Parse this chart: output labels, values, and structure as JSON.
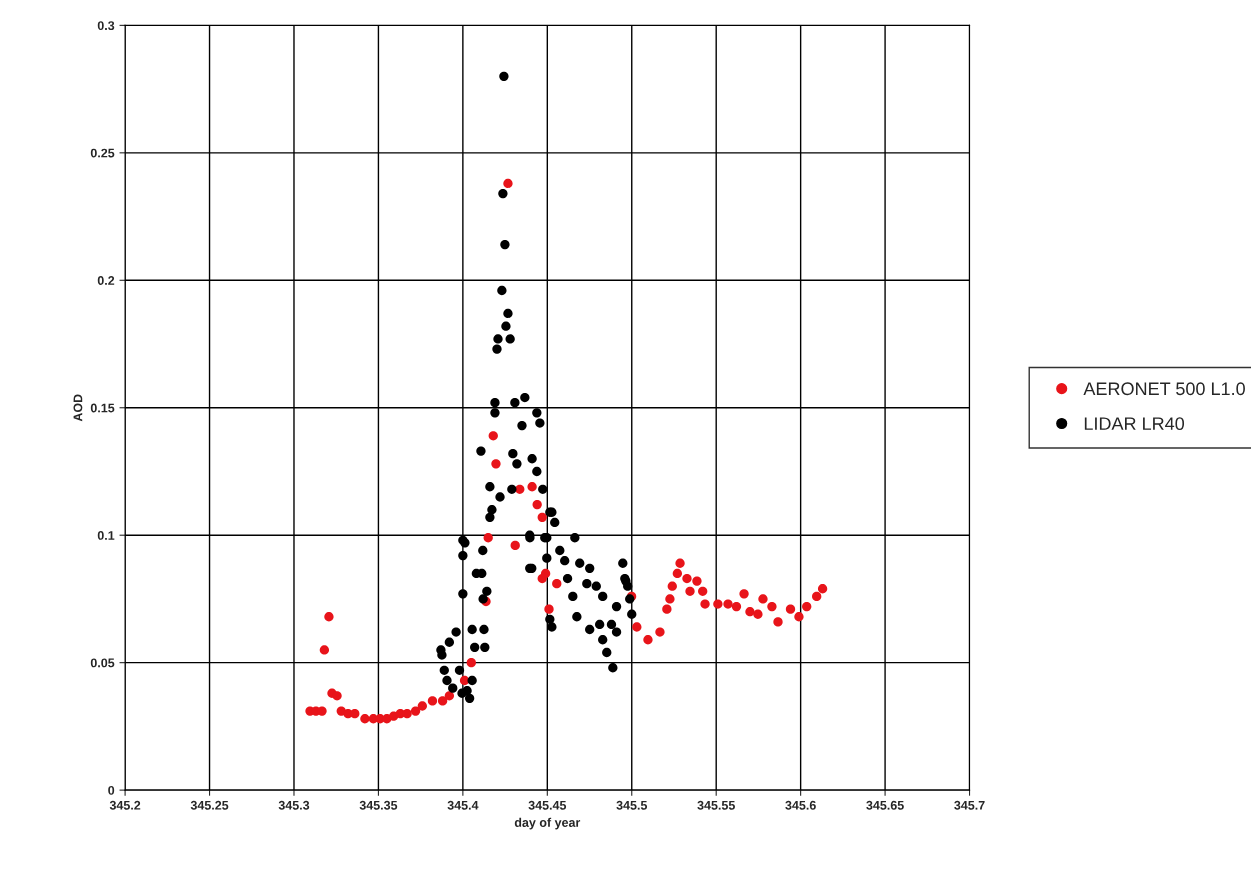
{
  "chart_data": {
    "type": "scatter",
    "xlabel": "day of year",
    "ylabel": "AOD",
    "xlim": [
      345.2,
      345.7
    ],
    "xticks": [
      345.2,
      345.25,
      345.3,
      345.35,
      345.4,
      345.45,
      345.5,
      345.55,
      345.6,
      345.65,
      345.7
    ],
    "ylim": [
      0,
      0.3
    ],
    "yticks": [
      0,
      0.05,
      0.1,
      0.15,
      0.2,
      0.25,
      0.3
    ],
    "grid": true,
    "legend": "right",
    "marker": "circle",
    "series": [
      {
        "name": "AERONET 500 L1.0",
        "color": "#e8141a",
        "x": [
          345.3095,
          345.313,
          345.3166,
          345.318,
          345.3207,
          345.3225,
          345.3255,
          345.328,
          345.332,
          345.336,
          345.342,
          345.347,
          345.351,
          345.355,
          345.359,
          345.363,
          345.367,
          345.372,
          345.376,
          345.382,
          345.388,
          345.392,
          345.401,
          345.405,
          345.4137,
          345.415,
          345.418,
          345.4196,
          345.4267,
          345.431,
          345.4337,
          345.441,
          345.444,
          345.447,
          345.447,
          345.449,
          345.4556,
          345.451,
          345.4999,
          345.503,
          345.5096,
          345.5167,
          345.5208,
          345.5226,
          345.524,
          345.527,
          345.5286,
          345.5327,
          345.5386,
          345.5345,
          345.542,
          345.5434,
          345.551,
          345.557,
          345.562,
          345.5665,
          345.57,
          345.5747,
          345.5777,
          345.583,
          345.5866,
          345.594,
          345.599,
          345.6036,
          345.6095,
          345.613
        ],
        "values": [
          0.031,
          0.031,
          0.031,
          0.055,
          0.068,
          0.038,
          0.037,
          0.031,
          0.03,
          0.03,
          0.028,
          0.028,
          0.028,
          0.028,
          0.029,
          0.03,
          0.03,
          0.031,
          0.033,
          0.035,
          0.035,
          0.037,
          0.043,
          0.05,
          0.074,
          0.099,
          0.139,
          0.128,
          0.238,
          0.096,
          0.118,
          0.119,
          0.112,
          0.107,
          0.083,
          0.085,
          0.081,
          0.071,
          0.076,
          0.064,
          0.059,
          0.062,
          0.071,
          0.075,
          0.08,
          0.085,
          0.089,
          0.083,
          0.082,
          0.078,
          0.078,
          0.073,
          0.073,
          0.073,
          0.072,
          0.077,
          0.07,
          0.069,
          0.075,
          0.072,
          0.066,
          0.071,
          0.068,
          0.072,
          0.076,
          0.079
        ]
      },
      {
        "name": "LIDAR LR40",
        "color": "#000000",
        "x": [
          345.396,
          345.392,
          345.387,
          345.3876,
          345.389,
          345.3906,
          345.394,
          345.3995,
          345.404,
          345.4055,
          345.407,
          345.398,
          345.4,
          345.408,
          345.4,
          345.4,
          345.412,
          345.4243,
          345.4237,
          345.4249,
          345.4231,
          345.4267,
          345.4255,
          345.428,
          345.4208,
          345.4202,
          345.419,
          345.419,
          345.4308,
          345.4367,
          345.4438,
          345.4456,
          345.435,
          345.4107,
          345.4296,
          345.432,
          345.441,
          345.4438,
          345.416,
          345.422,
          345.429,
          345.4172,
          345.416,
          345.4012,
          345.4118,
          345.4112,
          345.4473,
          345.4527,
          345.4497,
          345.4397,
          345.4408,
          345.4396,
          345.4485,
          345.4663,
          345.4515,
          345.4544,
          345.4396,
          345.4574,
          345.4497,
          345.4603,
          345.4692,
          345.4751,
          345.462,
          345.4734,
          345.479,
          345.4947,
          345.4959,
          345.4976,
          345.4828,
          345.491,
          345.4651,
          345.4675,
          345.4751,
          345.481,
          345.488,
          345.491,
          345.4828,
          345.4852,
          345.4888,
          345.5,
          345.4527,
          345.4515,
          345.4142,
          345.4125,
          345.413,
          345.4965,
          345.4988,
          345.4055,
          345.4025
        ],
        "values": [
          0.062,
          0.058,
          0.055,
          0.053,
          0.047,
          0.043,
          0.04,
          0.038,
          0.036,
          0.063,
          0.056,
          0.047,
          0.077,
          0.085,
          0.098,
          0.092,
          0.075,
          0.28,
          0.234,
          0.214,
          0.196,
          0.187,
          0.182,
          0.177,
          0.177,
          0.173,
          0.152,
          0.148,
          0.152,
          0.154,
          0.148,
          0.144,
          0.143,
          0.133,
          0.132,
          0.128,
          0.13,
          0.125,
          0.119,
          0.115,
          0.118,
          0.11,
          0.107,
          0.097,
          0.094,
          0.085,
          0.118,
          0.109,
          0.099,
          0.099,
          0.087,
          0.1,
          0.099,
          0.099,
          0.109,
          0.105,
          0.087,
          0.094,
          0.091,
          0.09,
          0.089,
          0.087,
          0.083,
          0.081,
          0.08,
          0.089,
          0.083,
          0.08,
          0.076,
          0.072,
          0.076,
          0.068,
          0.063,
          0.065,
          0.065,
          0.062,
          0.059,
          0.054,
          0.048,
          0.069,
          0.064,
          0.067,
          0.078,
          0.063,
          0.056,
          0.082,
          0.075,
          0.043,
          0.039
        ]
      }
    ]
  }
}
